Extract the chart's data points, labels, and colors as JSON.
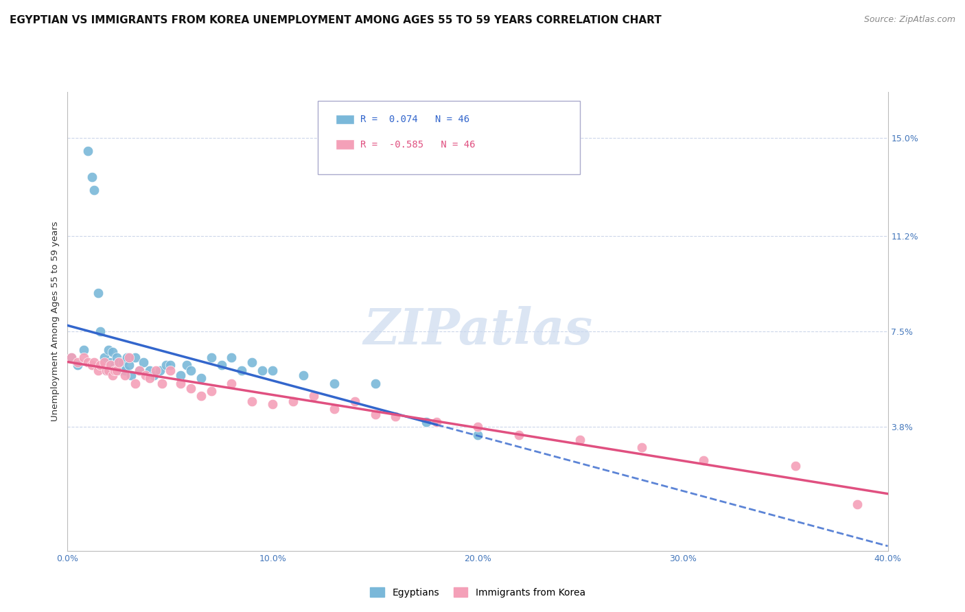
{
  "title": "EGYPTIAN VS IMMIGRANTS FROM KOREA UNEMPLOYMENT AMONG AGES 55 TO 59 YEARS CORRELATION CHART",
  "source": "Source: ZipAtlas.com",
  "ylabel": "Unemployment Among Ages 55 to 59 years",
  "xlim": [
    0.0,
    0.4
  ],
  "ylim": [
    -0.01,
    0.168
  ],
  "yticks": [
    0.038,
    0.075,
    0.112,
    0.15
  ],
  "ytick_labels": [
    "3.8%",
    "7.5%",
    "11.2%",
    "15.0%"
  ],
  "xticks": [
    0.0,
    0.1,
    0.2,
    0.3,
    0.4
  ],
  "xtick_labels": [
    "0.0%",
    "10.0%",
    "20.0%",
    "30.0%",
    "40.0%"
  ],
  "r_egyptian": 0.074,
  "n_egyptian": 46,
  "r_korean": -0.585,
  "n_korean": 46,
  "color_egyptian": "#7ab8d9",
  "color_korean": "#f4a0b8",
  "line_color_egyptian": "#3366cc",
  "line_color_korean": "#e05080",
  "legend_label_egyptian": "Egyptians",
  "legend_label_korean": "Immigrants from Korea",
  "watermark_text": "ZIPatlas",
  "title_fontsize": 11,
  "source_fontsize": 9,
  "axis_label_fontsize": 9.5,
  "tick_fontsize": 9,
  "tick_color": "#4477bb",
  "egyptian_x": [
    0.002,
    0.005,
    0.008,
    0.01,
    0.012,
    0.013,
    0.015,
    0.016,
    0.018,
    0.019,
    0.02,
    0.021,
    0.022,
    0.023,
    0.024,
    0.025,
    0.026,
    0.027,
    0.028,
    0.029,
    0.03,
    0.031,
    0.033,
    0.035,
    0.037,
    0.04,
    0.042,
    0.045,
    0.048,
    0.05,
    0.055,
    0.058,
    0.06,
    0.065,
    0.07,
    0.075,
    0.08,
    0.085,
    0.09,
    0.095,
    0.1,
    0.115,
    0.13,
    0.15,
    0.175,
    0.2
  ],
  "egyptian_y": [
    0.065,
    0.062,
    0.068,
    0.145,
    0.135,
    0.13,
    0.09,
    0.075,
    0.065,
    0.06,
    0.068,
    0.063,
    0.067,
    0.062,
    0.065,
    0.063,
    0.06,
    0.063,
    0.06,
    0.065,
    0.062,
    0.058,
    0.065,
    0.06,
    0.063,
    0.06,
    0.058,
    0.06,
    0.062,
    0.062,
    0.058,
    0.062,
    0.06,
    0.057,
    0.065,
    0.062,
    0.065,
    0.06,
    0.063,
    0.06,
    0.06,
    0.058,
    0.055,
    0.055,
    0.04,
    0.035
  ],
  "korean_x": [
    0.002,
    0.005,
    0.008,
    0.01,
    0.012,
    0.013,
    0.015,
    0.016,
    0.018,
    0.019,
    0.02,
    0.021,
    0.022,
    0.023,
    0.024,
    0.025,
    0.028,
    0.03,
    0.033,
    0.035,
    0.038,
    0.04,
    0.043,
    0.046,
    0.05,
    0.055,
    0.06,
    0.065,
    0.07,
    0.08,
    0.09,
    0.1,
    0.11,
    0.12,
    0.13,
    0.14,
    0.15,
    0.16,
    0.18,
    0.2,
    0.22,
    0.25,
    0.28,
    0.31,
    0.355,
    0.385
  ],
  "korean_y": [
    0.065,
    0.063,
    0.065,
    0.063,
    0.062,
    0.063,
    0.06,
    0.062,
    0.063,
    0.06,
    0.06,
    0.062,
    0.058,
    0.06,
    0.06,
    0.063,
    0.058,
    0.065,
    0.055,
    0.06,
    0.058,
    0.057,
    0.06,
    0.055,
    0.06,
    0.055,
    0.053,
    0.05,
    0.052,
    0.055,
    0.048,
    0.047,
    0.048,
    0.05,
    0.045,
    0.048,
    0.043,
    0.042,
    0.04,
    0.038,
    0.035,
    0.033,
    0.03,
    0.025,
    0.023,
    0.008
  ]
}
